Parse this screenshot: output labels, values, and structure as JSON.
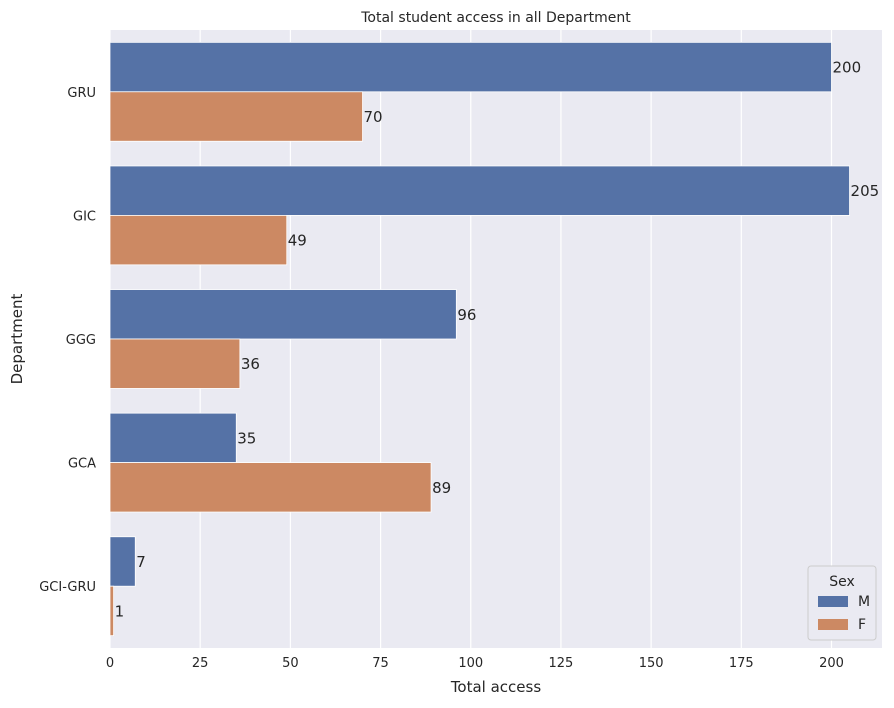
{
  "chart_data": {
    "type": "bar",
    "orientation": "horizontal",
    "title": "Total student access in all Department",
    "xlabel": "Total access",
    "ylabel": "Department",
    "categories": [
      "GRU",
      "GIC",
      "GGG",
      "GCA",
      "GCI-GRU"
    ],
    "series": [
      {
        "name": "M",
        "values": [
          200,
          205,
          96,
          35,
          7
        ],
        "color": "#5572a6"
      },
      {
        "name": "F",
        "values": [
          70,
          49,
          36,
          89,
          1
        ],
        "color": "#cc8963"
      }
    ],
    "xlim": [
      0,
      214
    ],
    "xticks": [
      0,
      25,
      50,
      75,
      100,
      125,
      150,
      175,
      200
    ],
    "grid": true,
    "background": "#eaeaf2",
    "legend": {
      "title": "Sex",
      "position": "bottom-right"
    }
  }
}
